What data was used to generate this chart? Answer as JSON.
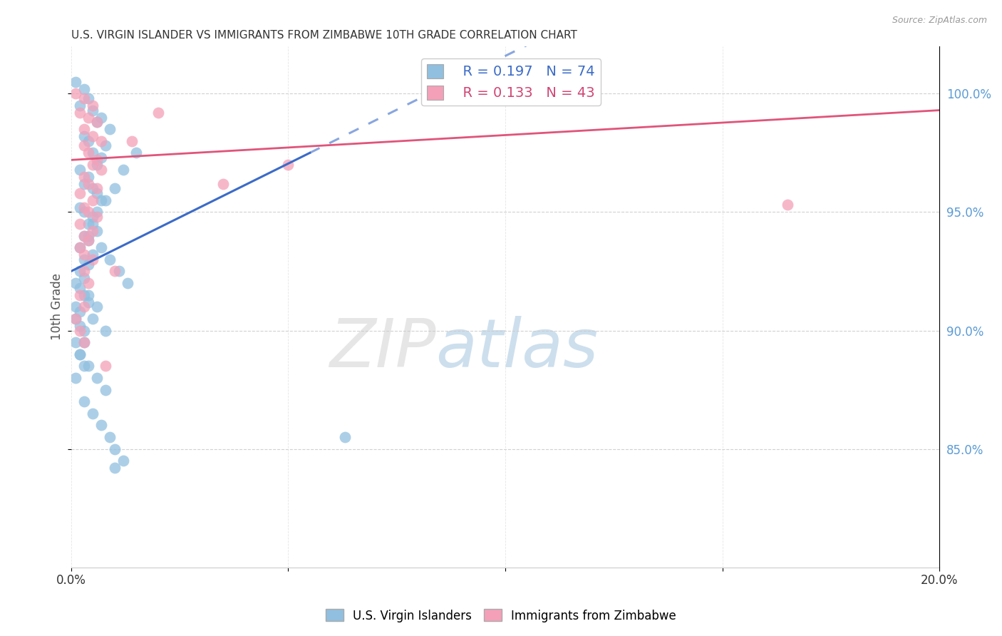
{
  "title": "U.S. VIRGIN ISLANDER VS IMMIGRANTS FROM ZIMBABWE 10TH GRADE CORRELATION CHART",
  "source": "Source: ZipAtlas.com",
  "ylabel": "10th Grade",
  "xlim": [
    0.0,
    0.2
  ],
  "ylim": [
    80.0,
    102.0
  ],
  "xticks": [
    0.0,
    0.05,
    0.1,
    0.15,
    0.2
  ],
  "xtick_labels": [
    "0.0%",
    "",
    "",
    "",
    "20.0%"
  ],
  "yticks_right": [
    85.0,
    90.0,
    95.0,
    100.0
  ],
  "ytick_labels_right": [
    "85.0%",
    "90.0%",
    "95.0%",
    "100.0%"
  ],
  "legend_blue_R": "R = 0.197",
  "legend_blue_N": "N = 74",
  "legend_pink_R": "R = 0.133",
  "legend_pink_N": "N = 43",
  "blue_color": "#90BFDF",
  "pink_color": "#F4A0B8",
  "blue_line_color": "#3B6BC8",
  "pink_line_color": "#E0547A",
  "background_color": "#FFFFFF",
  "grid_color": "#CCCCCC",
  "title_color": "#333333",
  "tick_color_right": "#5B9BD5",
  "legend_color_blue": "#3B6BC8",
  "legend_color_pink": "#D04575",
  "blue_scatter_x": [
    0.001,
    0.003,
    0.004,
    0.002,
    0.005,
    0.007,
    0.006,
    0.009,
    0.003,
    0.004,
    0.008,
    0.005,
    0.007,
    0.006,
    0.002,
    0.004,
    0.003,
    0.005,
    0.006,
    0.007,
    0.002,
    0.003,
    0.005,
    0.004,
    0.006,
    0.003,
    0.004,
    0.002,
    0.005,
    0.003,
    0.004,
    0.002,
    0.003,
    0.001,
    0.002,
    0.003,
    0.004,
    0.001,
    0.002,
    0.001,
    0.002,
    0.003,
    0.001,
    0.002,
    0.003,
    0.001,
    0.015,
    0.012,
    0.01,
    0.008,
    0.006,
    0.005,
    0.004,
    0.007,
    0.009,
    0.011,
    0.013,
    0.004,
    0.006,
    0.005,
    0.008,
    0.003,
    0.002,
    0.004,
    0.006,
    0.008,
    0.003,
    0.005,
    0.007,
    0.009,
    0.01,
    0.012,
    0.063,
    0.01
  ],
  "blue_scatter_y": [
    100.5,
    100.2,
    99.8,
    99.5,
    99.3,
    99.0,
    98.8,
    98.5,
    98.2,
    98.0,
    97.8,
    97.5,
    97.3,
    97.0,
    96.8,
    96.5,
    96.2,
    96.0,
    95.8,
    95.5,
    95.2,
    95.0,
    94.8,
    94.5,
    94.2,
    94.0,
    93.8,
    93.5,
    93.2,
    93.0,
    92.8,
    92.5,
    92.2,
    92.0,
    91.8,
    91.5,
    91.2,
    91.0,
    90.8,
    90.5,
    90.2,
    90.0,
    89.5,
    89.0,
    88.5,
    88.0,
    97.5,
    96.8,
    96.0,
    95.5,
    95.0,
    94.5,
    94.0,
    93.5,
    93.0,
    92.5,
    92.0,
    91.5,
    91.0,
    90.5,
    90.0,
    89.5,
    89.0,
    88.5,
    88.0,
    87.5,
    87.0,
    86.5,
    86.0,
    85.5,
    85.0,
    84.5,
    85.5,
    84.2
  ],
  "pink_scatter_x": [
    0.001,
    0.003,
    0.005,
    0.002,
    0.004,
    0.006,
    0.003,
    0.005,
    0.007,
    0.003,
    0.004,
    0.006,
    0.005,
    0.007,
    0.003,
    0.004,
    0.006,
    0.002,
    0.005,
    0.003,
    0.004,
    0.006,
    0.002,
    0.005,
    0.003,
    0.004,
    0.002,
    0.003,
    0.005,
    0.003,
    0.004,
    0.002,
    0.003,
    0.001,
    0.002,
    0.003,
    0.014,
    0.02,
    0.05,
    0.035,
    0.165,
    0.01,
    0.008
  ],
  "pink_scatter_y": [
    100.0,
    99.8,
    99.5,
    99.2,
    99.0,
    98.8,
    98.5,
    98.2,
    98.0,
    97.8,
    97.5,
    97.2,
    97.0,
    96.8,
    96.5,
    96.2,
    96.0,
    95.8,
    95.5,
    95.2,
    95.0,
    94.8,
    94.5,
    94.2,
    94.0,
    93.8,
    93.5,
    93.2,
    93.0,
    92.5,
    92.0,
    91.5,
    91.0,
    90.5,
    90.0,
    89.5,
    98.0,
    99.2,
    97.0,
    96.2,
    95.3,
    92.5,
    88.5
  ],
  "blue_line_x0": 0.0,
  "blue_line_y0": 92.5,
  "blue_line_x1": 0.055,
  "blue_line_y1": 97.5,
  "blue_line_solid_end": 0.055,
  "blue_line_dash_end": 0.2,
  "pink_line_x0": 0.0,
  "pink_line_y0": 97.2,
  "pink_line_x1": 0.2,
  "pink_line_y1": 99.3,
  "watermark_zip": "ZIP",
  "watermark_atlas": "atlas",
  "legend_label_blue": "U.S. Virgin Islanders",
  "legend_label_pink": "Immigrants from Zimbabwe"
}
